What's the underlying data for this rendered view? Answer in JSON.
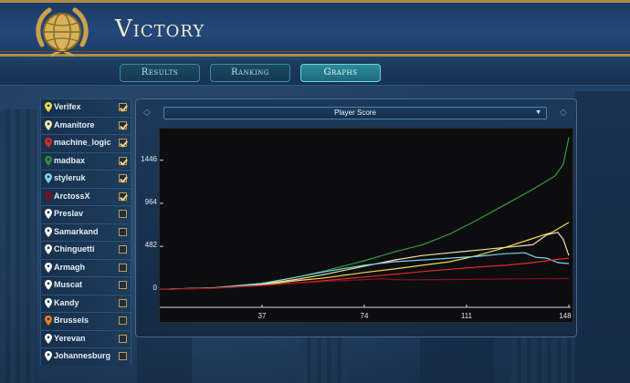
{
  "header": {
    "title": "Victory"
  },
  "tabs": [
    {
      "label": "Results",
      "active": false
    },
    {
      "label": "Ranking",
      "active": false
    },
    {
      "label": "Graphs",
      "active": true
    }
  ],
  "players": [
    {
      "name": "Verifex",
      "pin_color": "#f2d84a",
      "checked": true
    },
    {
      "name": "Amanitore",
      "pin_color": "#f0e6b0",
      "checked": true
    },
    {
      "name": "machine_logic",
      "pin_color": "#d62a2a",
      "checked": true
    },
    {
      "name": "madbax",
      "pin_color": "#2e8b3a",
      "checked": true
    },
    {
      "name": "styleruk",
      "pin_color": "#7fd4e8",
      "checked": true
    },
    {
      "name": "ArctossX",
      "pin_color": "#7a1020",
      "checked": true
    },
    {
      "name": "Preslav",
      "pin_color": "#ffffff",
      "checked": false
    },
    {
      "name": "Samarkand",
      "pin_color": "#ffffff",
      "checked": false
    },
    {
      "name": "Chinguetti",
      "pin_color": "#ffffff",
      "checked": false
    },
    {
      "name": "Armagh",
      "pin_color": "#ffffff",
      "checked": false
    },
    {
      "name": "Muscat",
      "pin_color": "#ffffff",
      "checked": false
    },
    {
      "name": "Kandy",
      "pin_color": "#ffffff",
      "checked": false
    },
    {
      "name": "Brussels",
      "pin_color": "#f07a20",
      "checked": false
    },
    {
      "name": "Yerevan",
      "pin_color": "#ffffff",
      "checked": false
    },
    {
      "name": "Johannesburg",
      "pin_color": "#ffffff",
      "checked": false
    }
  ],
  "graph_select": {
    "value": "Player Score"
  },
  "chart_data": {
    "type": "line",
    "xlim": [
      0,
      148
    ],
    "ylim": [
      -200,
      1800
    ],
    "x_ticks": [
      37,
      74,
      111,
      148
    ],
    "y_ticks": [
      0,
      482,
      964,
      1446
    ],
    "series": [
      {
        "name": "madbax",
        "color": "#2f9e3c",
        "points": [
          [
            0,
            0
          ],
          [
            20,
            20
          ],
          [
            37,
            70
          ],
          [
            50,
            140
          ],
          [
            60,
            210
          ],
          [
            74,
            320
          ],
          [
            85,
            420
          ],
          [
            95,
            500
          ],
          [
            105,
            620
          ],
          [
            115,
            780
          ],
          [
            125,
            950
          ],
          [
            135,
            1120
          ],
          [
            143,
            1270
          ],
          [
            146,
            1400
          ],
          [
            148,
            1700
          ]
        ]
      },
      {
        "name": "Verifex",
        "color": "#f5d94a",
        "points": [
          [
            0,
            0
          ],
          [
            20,
            15
          ],
          [
            37,
            50
          ],
          [
            50,
            100
          ],
          [
            60,
            130
          ],
          [
            74,
            190
          ],
          [
            85,
            230
          ],
          [
            95,
            270
          ],
          [
            105,
            310
          ],
          [
            115,
            380
          ],
          [
            125,
            470
          ],
          [
            135,
            570
          ],
          [
            142,
            640
          ],
          [
            148,
            750
          ]
        ]
      },
      {
        "name": "Amanitore",
        "color": "#efe2a8",
        "points": [
          [
            0,
            0
          ],
          [
            20,
            18
          ],
          [
            37,
            60
          ],
          [
            50,
            115
          ],
          [
            60,
            170
          ],
          [
            74,
            260
          ],
          [
            85,
            330
          ],
          [
            95,
            380
          ],
          [
            105,
            410
          ],
          [
            115,
            440
          ],
          [
            125,
            470
          ],
          [
            135,
            500
          ],
          [
            140,
            610
          ],
          [
            144,
            640
          ],
          [
            146,
            560
          ],
          [
            148,
            380
          ]
        ]
      },
      {
        "name": "styleruk",
        "color": "#7fd4e8",
        "points": [
          [
            0,
            0
          ],
          [
            20,
            18
          ],
          [
            37,
            65
          ],
          [
            50,
            140
          ],
          [
            60,
            200
          ],
          [
            74,
            270
          ],
          [
            85,
            310
          ],
          [
            95,
            330
          ],
          [
            105,
            350
          ],
          [
            115,
            370
          ],
          [
            125,
            400
          ],
          [
            132,
            410
          ],
          [
            136,
            360
          ],
          [
            140,
            350
          ],
          [
            144,
            300
          ],
          [
            148,
            290
          ]
        ]
      },
      {
        "name": "machine_logic",
        "color": "#e02a2a",
        "points": [
          [
            0,
            0
          ],
          [
            20,
            15
          ],
          [
            37,
            45
          ],
          [
            50,
            75
          ],
          [
            60,
            100
          ],
          [
            74,
            140
          ],
          [
            85,
            170
          ],
          [
            95,
            200
          ],
          [
            105,
            225
          ],
          [
            115,
            250
          ],
          [
            125,
            270
          ],
          [
            135,
            300
          ],
          [
            142,
            330
          ],
          [
            148,
            350
          ]
        ]
      },
      {
        "name": "ArctossX",
        "color": "#8a1020",
        "points": [
          [
            0,
            0
          ],
          [
            20,
            12
          ],
          [
            37,
            40
          ],
          [
            50,
            70
          ],
          [
            60,
            90
          ],
          [
            74,
            110
          ],
          [
            80,
            120
          ],
          [
            85,
            110
          ],
          [
            90,
            108
          ],
          [
            100,
            110
          ],
          [
            110,
            112
          ],
          [
            120,
            115
          ],
          [
            130,
            118
          ],
          [
            140,
            120
          ],
          [
            148,
            122
          ]
        ]
      }
    ]
  }
}
